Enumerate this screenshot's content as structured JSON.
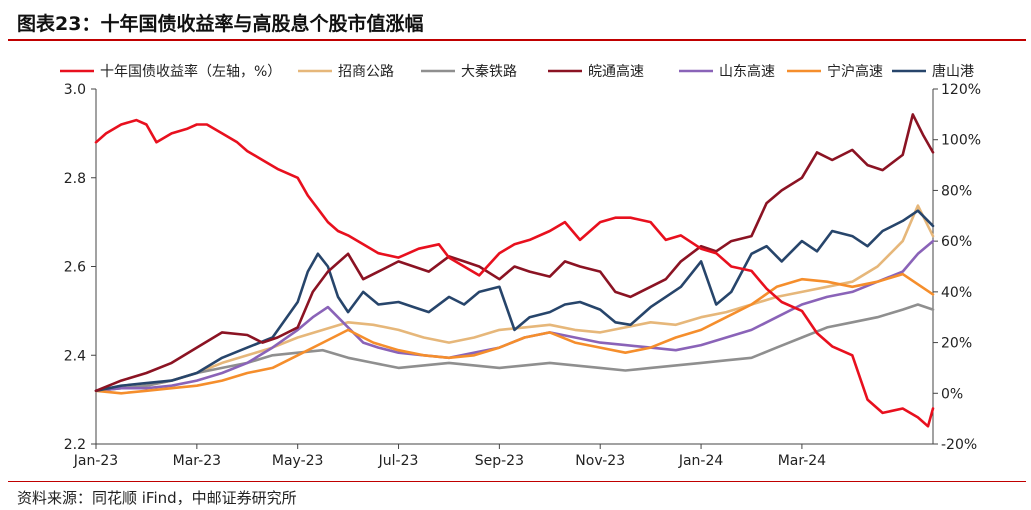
{
  "header": {
    "title": "图表23：十年国债收益率与高股息个股市值涨幅"
  },
  "footer": {
    "source": "资料来源：同花顺 iFind，中邮证券研究所"
  },
  "chart_data": {
    "type": "line",
    "title": "图表23：十年国债收益率与高股息个股市值涨幅",
    "x_ticks": [
      "Jan-23",
      "Mar-23",
      "May-23",
      "Jul-23",
      "Sep-23",
      "Nov-23",
      "Jan-24",
      "Mar-24"
    ],
    "x_range_months": [
      0,
      16.6
    ],
    "left_axis": {
      "range": [
        2.2,
        3.0
      ],
      "ticks": [
        2.2,
        2.4,
        2.6,
        2.8,
        3.0
      ],
      "tick_labels": [
        "2.2",
        "2.4",
        "2.6",
        "2.8",
        "3.0"
      ]
    },
    "right_axis": {
      "range": [
        -20,
        120
      ],
      "ticks": [
        -20,
        0,
        20,
        40,
        60,
        80,
        100,
        120
      ],
      "tick_labels": [
        "-20%",
        "0%",
        "20%",
        "40%",
        "60%",
        "80%",
        "100%",
        "120%"
      ]
    },
    "legend_position": "top",
    "series": [
      {
        "name": "十年国债收益率（左轴，%）",
        "axis": "left",
        "color": "#e8101e",
        "x": [
          0,
          0.2,
          0.5,
          0.8,
          1.0,
          1.2,
          1.5,
          1.8,
          2.0,
          2.2,
          2.5,
          2.8,
          3.0,
          3.3,
          3.6,
          4.0,
          4.2,
          4.4,
          4.6,
          4.8,
          5.0,
          5.3,
          5.6,
          6.0,
          6.4,
          6.8,
          7.0,
          7.3,
          7.6,
          8.0,
          8.3,
          8.6,
          9.0,
          9.3,
          9.6,
          10.0,
          10.3,
          10.6,
          11.0,
          11.3,
          11.6,
          12.0,
          12.3,
          12.6,
          13.0,
          13.3,
          13.6,
          14.0,
          14.3,
          14.6,
          15.0,
          15.3,
          15.6,
          16.0,
          16.3,
          16.5,
          16.6
        ],
        "values": [
          2.88,
          2.9,
          2.92,
          2.93,
          2.92,
          2.88,
          2.9,
          2.91,
          2.92,
          2.92,
          2.9,
          2.88,
          2.86,
          2.84,
          2.82,
          2.8,
          2.76,
          2.73,
          2.7,
          2.68,
          2.67,
          2.65,
          2.63,
          2.62,
          2.64,
          2.65,
          2.62,
          2.6,
          2.58,
          2.63,
          2.65,
          2.66,
          2.68,
          2.7,
          2.66,
          2.7,
          2.71,
          2.71,
          2.7,
          2.66,
          2.67,
          2.64,
          2.63,
          2.6,
          2.59,
          2.55,
          2.52,
          2.5,
          2.45,
          2.42,
          2.4,
          2.3,
          2.27,
          2.28,
          2.26,
          2.24,
          2.28
        ]
      },
      {
        "name": "招商公路",
        "axis": "right",
        "color": "#e6b77a",
        "x": [
          0,
          0.5,
          1.0,
          1.5,
          2.0,
          2.5,
          3.0,
          3.5,
          4.0,
          4.5,
          5.0,
          5.5,
          6.0,
          6.5,
          7.0,
          7.5,
          8.0,
          8.5,
          9.0,
          9.5,
          10.0,
          10.5,
          11.0,
          11.5,
          12.0,
          12.5,
          13.0,
          13.5,
          14.0,
          14.5,
          15.0,
          15.5,
          16.0,
          16.3,
          16.6
        ],
        "values": [
          1,
          2,
          3,
          5,
          8,
          12,
          15,
          18,
          22,
          25,
          28,
          27,
          25,
          22,
          20,
          22,
          25,
          26,
          27,
          25,
          24,
          26,
          28,
          27,
          30,
          32,
          35,
          38,
          40,
          42,
          44,
          50,
          60,
          74,
          62
        ]
      },
      {
        "name": "大秦铁路",
        "axis": "right",
        "color": "#8f8f8f",
        "x": [
          0,
          0.5,
          1.0,
          1.5,
          2.0,
          2.5,
          3.0,
          3.5,
          4.0,
          4.5,
          5.0,
          5.5,
          6.0,
          6.5,
          7.0,
          7.5,
          8.0,
          8.5,
          9.0,
          9.5,
          10.0,
          10.5,
          11.0,
          11.5,
          12.0,
          12.5,
          13.0,
          13.5,
          14.0,
          14.5,
          15.0,
          15.5,
          16.0,
          16.3,
          16.6
        ],
        "values": [
          1,
          2,
          3,
          5,
          8,
          10,
          12,
          15,
          16,
          17,
          14,
          12,
          10,
          11,
          12,
          11,
          10,
          11,
          12,
          11,
          10,
          9,
          10,
          11,
          12,
          13,
          14,
          18,
          22,
          26,
          28,
          30,
          33,
          35,
          33
        ]
      },
      {
        "name": "皖通高速",
        "axis": "right",
        "color": "#8b1323",
        "x": [
          0,
          0.5,
          1.0,
          1.5,
          2.0,
          2.5,
          3.0,
          3.3,
          3.6,
          4.0,
          4.3,
          4.6,
          5.0,
          5.3,
          5.6,
          6.0,
          6.3,
          6.6,
          7.0,
          7.3,
          7.6,
          8.0,
          8.3,
          8.6,
          9.0,
          9.3,
          9.6,
          10.0,
          10.3,
          10.6,
          11.0,
          11.3,
          11.6,
          12.0,
          12.3,
          12.6,
          13.0,
          13.3,
          13.6,
          14.0,
          14.3,
          14.6,
          15.0,
          15.3,
          15.6,
          16.0,
          16.2,
          16.4,
          16.6
        ],
        "values": [
          1,
          5,
          8,
          12,
          18,
          24,
          23,
          20,
          22,
          26,
          40,
          48,
          55,
          45,
          48,
          52,
          50,
          48,
          54,
          52,
          50,
          45,
          50,
          48,
          46,
          52,
          50,
          48,
          40,
          38,
          42,
          45,
          52,
          58,
          56,
          60,
          62,
          75,
          80,
          85,
          95,
          92,
          96,
          90,
          88,
          94,
          110,
          102,
          95
        ]
      },
      {
        "name": "山东高速",
        "axis": "right",
        "color": "#8a63b8",
        "x": [
          0,
          0.5,
          1.0,
          1.5,
          2.0,
          2.5,
          3.0,
          3.5,
          4.0,
          4.3,
          4.6,
          5.0,
          5.3,
          5.6,
          6.0,
          6.5,
          7.0,
          7.5,
          8.0,
          8.5,
          9.0,
          9.5,
          10.0,
          10.5,
          11.0,
          11.5,
          12.0,
          12.5,
          13.0,
          13.5,
          14.0,
          14.5,
          15.0,
          15.5,
          16.0,
          16.3,
          16.6
        ],
        "values": [
          1,
          2,
          2,
          3,
          5,
          8,
          12,
          18,
          25,
          30,
          34,
          26,
          20,
          18,
          16,
          15,
          14,
          16,
          18,
          22,
          24,
          22,
          20,
          19,
          18,
          17,
          19,
          22,
          25,
          30,
          35,
          38,
          40,
          44,
          48,
          55,
          60
        ]
      },
      {
        "name": "宁沪高速",
        "axis": "right",
        "color": "#f58e2c",
        "x": [
          0,
          0.5,
          1.0,
          1.5,
          2.0,
          2.5,
          3.0,
          3.5,
          4.0,
          4.5,
          5.0,
          5.5,
          6.0,
          6.5,
          7.0,
          7.5,
          8.0,
          8.5,
          9.0,
          9.5,
          10.0,
          10.5,
          11.0,
          11.5,
          12.0,
          12.5,
          13.0,
          13.5,
          14.0,
          14.5,
          15.0,
          15.5,
          16.0,
          16.3,
          16.6
        ],
        "values": [
          1,
          0,
          1,
          2,
          3,
          5,
          8,
          10,
          15,
          20,
          25,
          20,
          17,
          15,
          14,
          15,
          18,
          22,
          24,
          20,
          18,
          16,
          18,
          22,
          25,
          30,
          35,
          42,
          45,
          44,
          42,
          44,
          47,
          43,
          39
        ]
      },
      {
        "name": "唐山港",
        "axis": "right",
        "color": "#27456b",
        "x": [
          0,
          0.5,
          1.0,
          1.5,
          2.0,
          2.5,
          3.0,
          3.5,
          4.0,
          4.2,
          4.4,
          4.6,
          4.8,
          5.0,
          5.3,
          5.6,
          6.0,
          6.3,
          6.6,
          7.0,
          7.3,
          7.6,
          8.0,
          8.3,
          8.6,
          9.0,
          9.3,
          9.6,
          10.0,
          10.3,
          10.6,
          11.0,
          11.3,
          11.6,
          12.0,
          12.3,
          12.6,
          13.0,
          13.3,
          13.6,
          14.0,
          14.3,
          14.6,
          15.0,
          15.3,
          15.6,
          16.0,
          16.3,
          16.6
        ],
        "values": [
          1,
          3,
          4,
          5,
          8,
          14,
          18,
          22,
          36,
          48,
          55,
          50,
          38,
          32,
          40,
          35,
          36,
          34,
          32,
          38,
          35,
          40,
          42,
          25,
          30,
          32,
          35,
          36,
          33,
          28,
          27,
          34,
          38,
          42,
          52,
          35,
          40,
          55,
          58,
          52,
          60,
          56,
          64,
          62,
          58,
          64,
          68,
          72,
          66
        ]
      }
    ]
  }
}
